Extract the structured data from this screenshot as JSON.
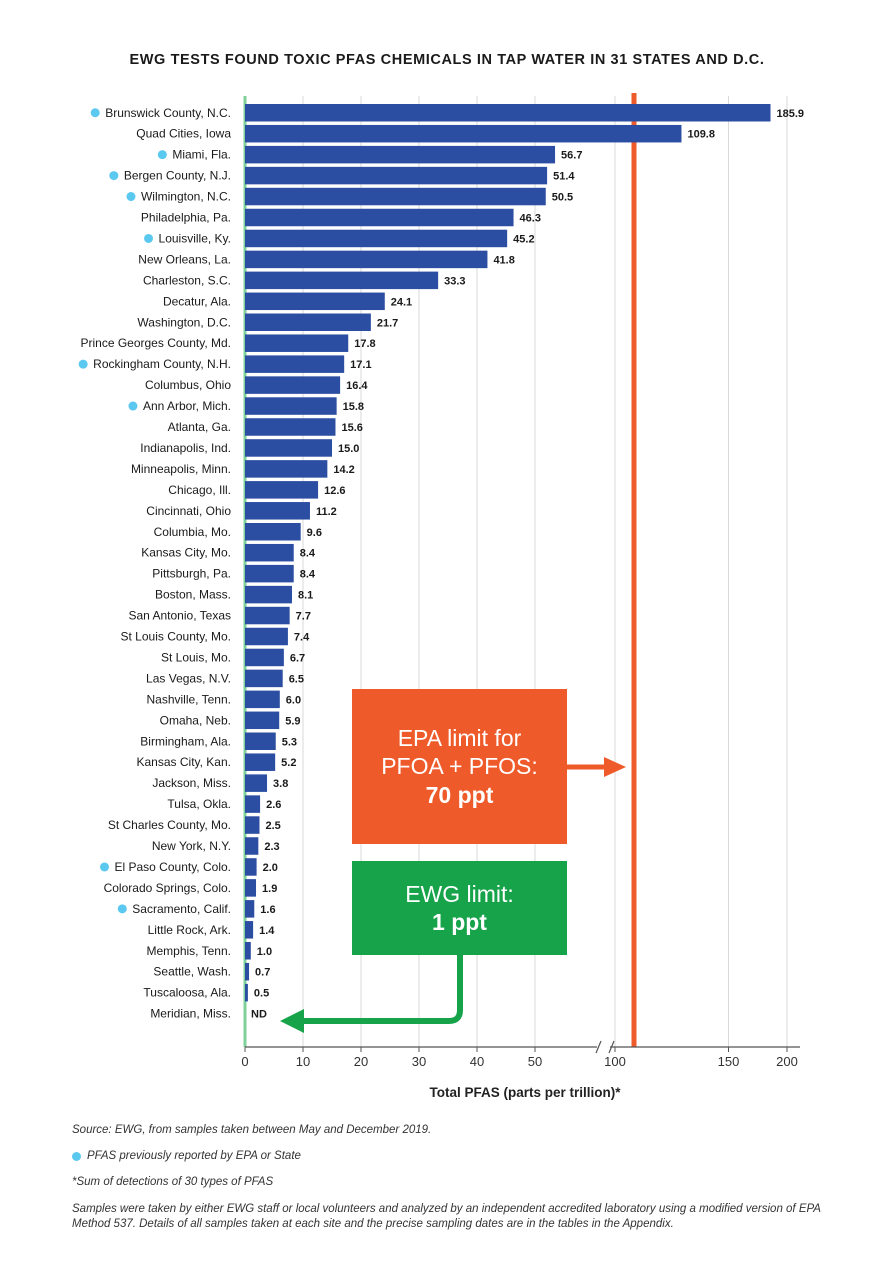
{
  "chart_data": {
    "type": "bar",
    "orientation": "horizontal",
    "title": "EWG TESTS FOUND TOXIC PFAS CHEMICALS IN TAP WATER IN 31 STATES AND D.C.",
    "xlabel": "Total PFAS (parts per trillion)*",
    "ylabel": "",
    "x_scale": "broken: linear 0–50, break, then 100–200",
    "xticks": [
      "0",
      "10",
      "20",
      "30",
      "40",
      "50",
      "100",
      "150",
      "200"
    ],
    "grid": true,
    "bar_color": "#2b4ea2",
    "highlight_color": "#5bc8ef",
    "categories": [
      "Brunswick County, N.C.",
      "Quad Cities, Iowa",
      "Miami, Fla.",
      "Bergen County, N.J.",
      "Wilmington, N.C.",
      "Philadelphia, Pa.",
      "Louisville, Ky.",
      "New Orleans, La.",
      "Charleston, S.C.",
      "Decatur, Ala.",
      "Washington, D.C.",
      "Prince Georges County, Md.",
      "Rockingham County, N.H.",
      "Columbus, Ohio",
      "Ann Arbor, Mich.",
      "Atlanta, Ga.",
      "Indianapolis, Ind.",
      "Minneapolis, Minn.",
      "Chicago, Ill.",
      "Cincinnati, Ohio",
      "Columbia, Mo.",
      "Kansas City, Mo.",
      "Pittsburgh, Pa.",
      "Boston, Mass.",
      "San Antonio, Texas",
      "St Louis County, Mo.",
      "St Louis, Mo.",
      "Las Vegas, N.V.",
      "Nashville, Tenn.",
      "Omaha, Neb.",
      "Birmingham, Ala.",
      "Kansas City, Kan.",
      "Jackson, Miss.",
      "Tulsa, Okla.",
      "St Charles County, Mo.",
      "New York, N.Y.",
      "El Paso County, Colo.",
      "Colorado Springs, Colo.",
      "Sacramento, Calif.",
      "Little Rock, Ark.",
      "Memphis, Tenn.",
      "Seattle, Wash.",
      "Tuscaloosa, Ala.",
      "Meridian, Miss."
    ],
    "values": [
      185.9,
      109.8,
      56.7,
      51.4,
      50.5,
      46.3,
      45.2,
      41.8,
      33.3,
      24.1,
      21.7,
      17.8,
      17.1,
      16.4,
      15.8,
      15.6,
      15.0,
      14.2,
      12.6,
      11.2,
      9.6,
      8.4,
      8.4,
      8.1,
      7.7,
      7.4,
      6.7,
      6.5,
      6.0,
      5.9,
      5.3,
      5.2,
      3.8,
      2.6,
      2.5,
      2.3,
      2.0,
      1.9,
      1.6,
      1.4,
      1.0,
      0.7,
      0.5,
      0
    ],
    "value_labels": [
      "185.9",
      "109.8",
      "56.7",
      "51.4",
      "50.5",
      "46.3",
      "45.2",
      "41.8",
      "33.3",
      "24.1",
      "21.7",
      "17.8",
      "17.1",
      "16.4",
      "15.8",
      "15.6",
      "15.0",
      "14.2",
      "12.6",
      "11.2",
      "9.6",
      "8.4",
      "8.4",
      "8.1",
      "7.7",
      "7.4",
      "6.7",
      "6.5",
      "6.0",
      "5.9",
      "5.3",
      "5.2",
      "3.8",
      "2.6",
      "2.5",
      "2.3",
      "2.0",
      "1.9",
      "1.6",
      "1.4",
      "1.0",
      "0.7",
      "0.5",
      "ND"
    ],
    "highlighted": [
      true,
      false,
      true,
      true,
      true,
      false,
      true,
      false,
      false,
      false,
      false,
      false,
      true,
      false,
      true,
      false,
      false,
      false,
      false,
      false,
      false,
      false,
      false,
      false,
      false,
      false,
      false,
      false,
      false,
      false,
      false,
      false,
      false,
      false,
      false,
      false,
      true,
      false,
      true,
      false,
      false,
      false,
      false,
      false
    ],
    "reference_lines": [
      {
        "label": "EPA limit for PFOA + PFOS:",
        "value_text": "70 ppt",
        "value": 70,
        "color": "#ef5a2a"
      },
      {
        "label": "EWG limit:",
        "value_text": "1 ppt",
        "value": 1,
        "color": "#16a34a"
      }
    ]
  },
  "annotations": {
    "epa": {
      "line1": "EPA limit for",
      "line2": "PFOA + PFOS:",
      "line3": "70 ppt"
    },
    "ewg": {
      "line1": "EWG limit:",
      "line2": "1 ppt"
    }
  },
  "notes": {
    "source": "Source: EWG, from samples taken between May and December 2019.",
    "legend": "PFAS previously reported by EPA or State",
    "footnote": "*Sum of detections of 30 types of PFAS",
    "method": "Samples were taken by either EWG staff or local volunteers and analyzed by an independent accredited laboratory using a modified version of EPA Method 537. Details of all samples taken at each site and the precise sampling dates are in the tables in the Appendix."
  }
}
